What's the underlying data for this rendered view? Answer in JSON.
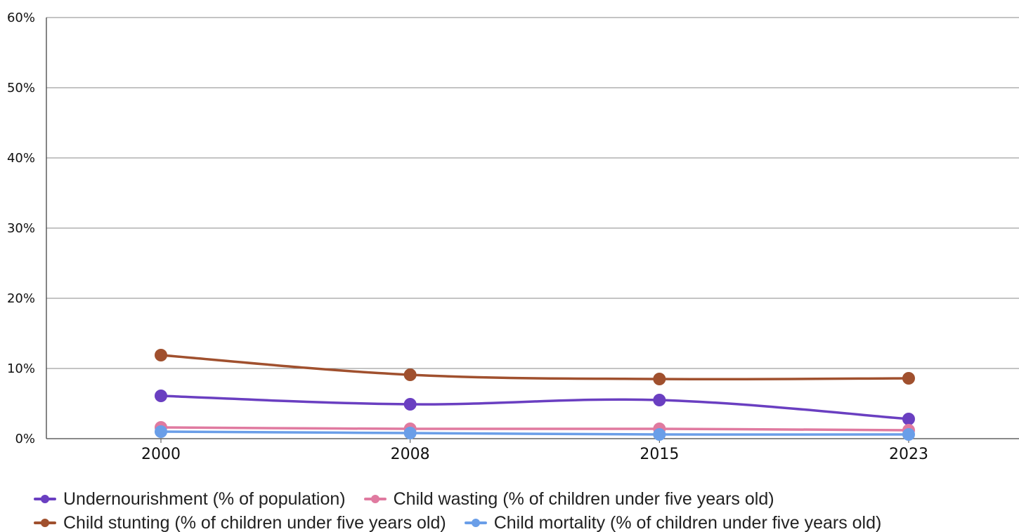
{
  "chart_data": {
    "type": "line",
    "title": "",
    "xlabel": "",
    "ylabel": "",
    "categories": [
      "2000",
      "2008",
      "2015",
      "2023"
    ],
    "ylim": [
      0,
      60
    ],
    "yticks": [
      "0%",
      "10%",
      "20%",
      "30%",
      "40%",
      "50%",
      "60%"
    ],
    "grid": "horizontal",
    "legend_position": "bottom",
    "series": [
      {
        "name": "Undernourishment (% of population)",
        "color": "#6a3fc1",
        "values": [
          6.1,
          4.9,
          5.5,
          2.8
        ]
      },
      {
        "name": "Child wasting (% of children under five years old)",
        "color": "#e07aa0",
        "values": [
          1.6,
          1.4,
          1.4,
          1.2
        ]
      },
      {
        "name": "Child stunting (% of children under five years old)",
        "color": "#a0502e",
        "values": [
          11.9,
          9.1,
          8.5,
          8.6
        ]
      },
      {
        "name": "Child mortality (% of children under five years old)",
        "color": "#6a9ee8",
        "values": [
          1.0,
          0.8,
          0.6,
          0.6
        ]
      }
    ]
  }
}
